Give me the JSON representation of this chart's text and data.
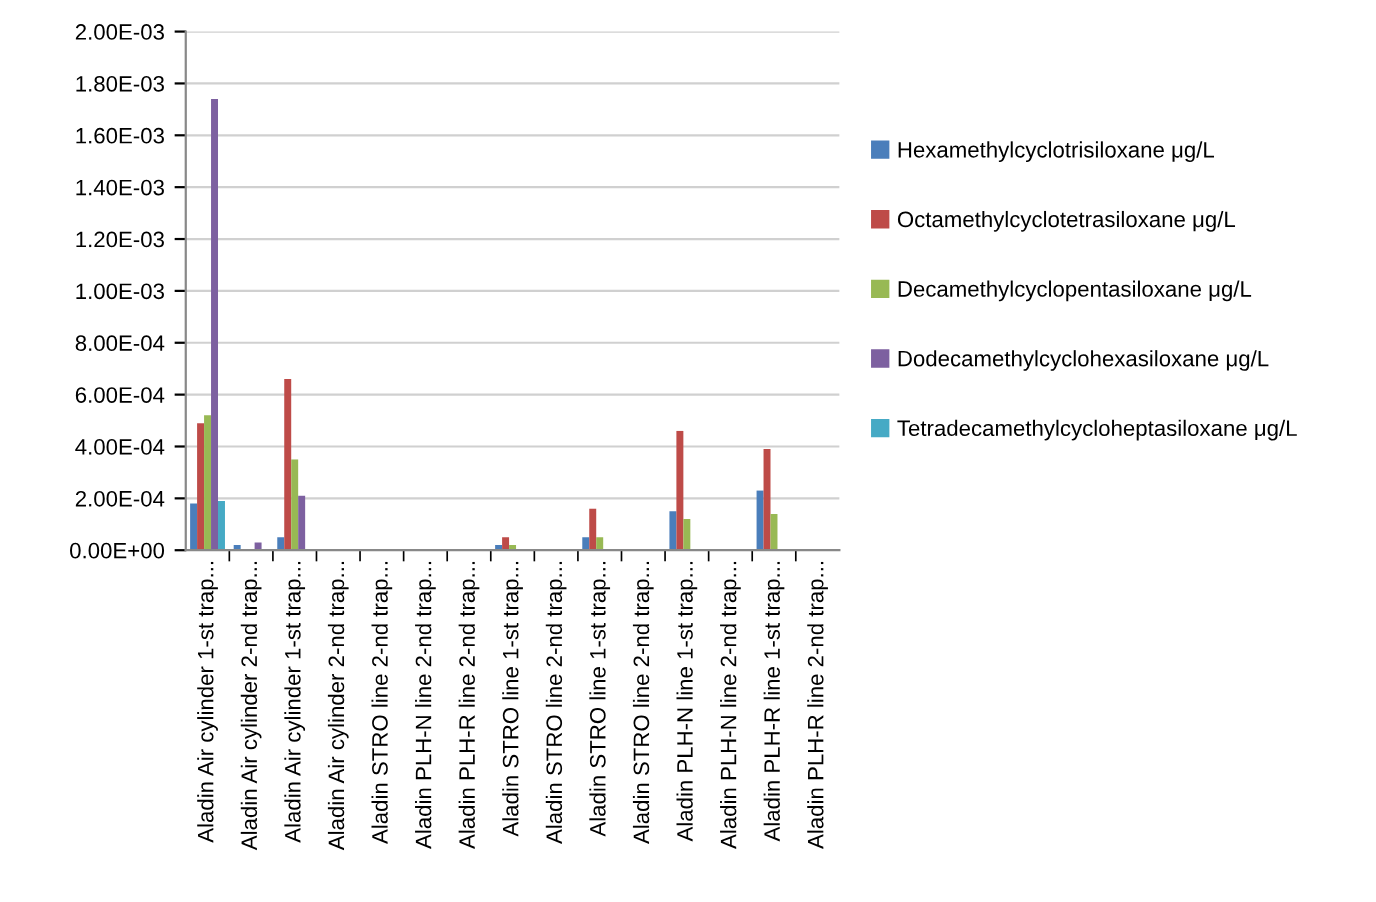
{
  "chart_data": {
    "type": "bar",
    "categories": [
      "Aladin Air cylinder 1-st trap...",
      "Aladin Air cylinder 2-nd trap...",
      "Aladin Air cylinder 1-st trap...",
      "Aladin Air cylinder 2-nd trap...",
      "Aladin STRO line 2-nd trap...",
      "Aladin PLH-N line 2-nd trap...",
      "Aladin PLH-R line 2-nd trap...",
      "Aladin STRO line 1-st trap...",
      "Aladin STRO line 2-nd trap...",
      "Aladin STRO line 1-st trap...",
      "Aladin STRO line 2-nd trap...",
      "Aladin PLH-N line 1-st trap...",
      "Aladin PLH-N line 2-nd trap...",
      "Aladin PLH-R line 1-st trap...",
      "Aladin PLH-R line 2-nd trap..."
    ],
    "series": [
      {
        "name": "Hexamethylcyclotrisiloxane μg/L",
        "color": "#4a7ebb",
        "values": [
          0.00018,
          2e-05,
          5e-05,
          0,
          0,
          0,
          0,
          2e-05,
          0,
          5e-05,
          0,
          0.00015,
          0,
          0.00023,
          0
        ]
      },
      {
        "name": "Octamethylcyclotetrasiloxane μg/L",
        "color": "#be4b48",
        "values": [
          0.00049,
          null,
          0.00066,
          0,
          0,
          0,
          0,
          5e-05,
          0,
          0.00016,
          0,
          0.00046,
          0,
          0.00039,
          0
        ]
      },
      {
        "name": "Decamethylcyclopentasiloxane μg/L",
        "color": "#98b954",
        "values": [
          0.00052,
          0,
          0.00035,
          0,
          0,
          0,
          0,
          2e-05,
          0,
          5e-05,
          0,
          0.00012,
          0,
          0.00014,
          0
        ]
      },
      {
        "name": "Dodecamethylcyclohexasiloxane μg/L",
        "color": "#7d60a0",
        "values": [
          0.00174,
          3e-05,
          0.00021,
          0,
          0,
          0,
          0,
          0,
          0,
          0,
          0,
          0,
          0,
          0,
          0
        ]
      },
      {
        "name": "Tetradecamethylcycloheptasiloxane μg/L",
        "color": "#46aac5",
        "values": [
          0.00019,
          0,
          0,
          0,
          0,
          0,
          0,
          0,
          0,
          0,
          0,
          0,
          0,
          0,
          0
        ]
      }
    ],
    "ylim": [
      0,
      0.002
    ],
    "yticks": [
      {
        "value": 0,
        "label": "0.00E+00"
      },
      {
        "value": 0.0002,
        "label": "2.00E-04"
      },
      {
        "value": 0.0004,
        "label": "4.00E-04"
      },
      {
        "value": 0.0006,
        "label": "6.00E-04"
      },
      {
        "value": 0.0008,
        "label": "8.00E-04"
      },
      {
        "value": 0.001,
        "label": "1.00E-03"
      },
      {
        "value": 0.0012,
        "label": "1.20E-03"
      },
      {
        "value": 0.0014,
        "label": "1.40E-03"
      },
      {
        "value": 0.0016,
        "label": "1.60E-03"
      },
      {
        "value": 0.0018,
        "label": "1.80E-03"
      },
      {
        "value": 0.002,
        "label": "2.00E-03"
      }
    ],
    "grid": "y",
    "legend": "right"
  }
}
